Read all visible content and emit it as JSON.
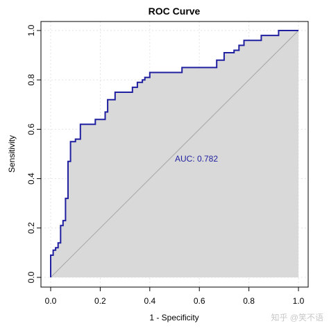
{
  "chart_data": {
    "type": "line",
    "title": "ROC Curve",
    "xlabel": "1 - Specificity",
    "ylabel": "Sensitivity",
    "xlim": [
      0,
      1
    ],
    "ylim": [
      0,
      1
    ],
    "xticks": [
      "0.0",
      "0.2",
      "0.4",
      "0.6",
      "0.8",
      "1.0"
    ],
    "yticks": [
      "0.0",
      "0.2",
      "0.4",
      "0.6",
      "0.8",
      "1.0"
    ],
    "grid": true,
    "annotation": "AUC: 0.782",
    "watermark": "知乎 @笑不语",
    "series": [
      {
        "style": "step",
        "color": "#1f1fa0",
        "fill": "#d9d9d9",
        "points": [
          [
            0,
            0
          ],
          [
            0,
            0.09
          ],
          [
            0.01,
            0.09
          ],
          [
            0.01,
            0.11
          ],
          [
            0.02,
            0.11
          ],
          [
            0.02,
            0.12
          ],
          [
            0.03,
            0.12
          ],
          [
            0.03,
            0.14
          ],
          [
            0.04,
            0.14
          ],
          [
            0.04,
            0.21
          ],
          [
            0.05,
            0.21
          ],
          [
            0.05,
            0.23
          ],
          [
            0.06,
            0.23
          ],
          [
            0.06,
            0.32
          ],
          [
            0.07,
            0.32
          ],
          [
            0.07,
            0.47
          ],
          [
            0.08,
            0.47
          ],
          [
            0.08,
            0.55
          ],
          [
            0.1,
            0.55
          ],
          [
            0.1,
            0.56
          ],
          [
            0.12,
            0.56
          ],
          [
            0.12,
            0.62
          ],
          [
            0.18,
            0.62
          ],
          [
            0.18,
            0.64
          ],
          [
            0.22,
            0.64
          ],
          [
            0.22,
            0.67
          ],
          [
            0.23,
            0.67
          ],
          [
            0.23,
            0.72
          ],
          [
            0.26,
            0.72
          ],
          [
            0.26,
            0.75
          ],
          [
            0.33,
            0.75
          ],
          [
            0.33,
            0.77
          ],
          [
            0.35,
            0.77
          ],
          [
            0.35,
            0.79
          ],
          [
            0.37,
            0.79
          ],
          [
            0.37,
            0.8
          ],
          [
            0.38,
            0.8
          ],
          [
            0.38,
            0.81
          ],
          [
            0.4,
            0.81
          ],
          [
            0.4,
            0.83
          ],
          [
            0.53,
            0.83
          ],
          [
            0.53,
            0.85
          ],
          [
            0.67,
            0.85
          ],
          [
            0.67,
            0.88
          ],
          [
            0.7,
            0.88
          ],
          [
            0.7,
            0.91
          ],
          [
            0.74,
            0.91
          ],
          [
            0.74,
            0.92
          ],
          [
            0.76,
            0.92
          ],
          [
            0.76,
            0.94
          ],
          [
            0.78,
            0.94
          ],
          [
            0.78,
            0.96
          ],
          [
            0.85,
            0.96
          ],
          [
            0.85,
            0.98
          ],
          [
            0.92,
            0.98
          ],
          [
            0.92,
            1.0
          ],
          [
            1.0,
            1.0
          ]
        ]
      }
    ],
    "diagonal_color": "#a6a6a6"
  }
}
